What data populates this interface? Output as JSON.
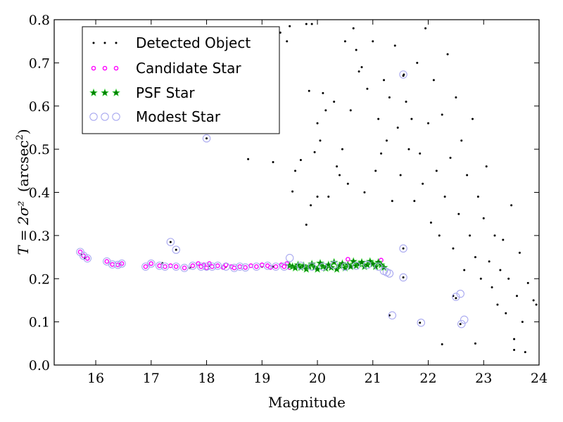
{
  "chart_data": {
    "type": "scatter",
    "xlabel": "Magnitude",
    "ylabel_math": "T = 2σ²",
    "ylabel_unit_prefix": "(arcsec",
    "ylabel_unit_suffix": ")",
    "ylabel_unit_sup": "2",
    "xlim": [
      15.25,
      24
    ],
    "ylim": [
      0.0,
      0.8
    ],
    "xticks": [
      "16",
      "17",
      "18",
      "19",
      "20",
      "21",
      "22",
      "23",
      "24"
    ],
    "xtick_values": [
      16,
      17,
      18,
      19,
      20,
      21,
      22,
      23,
      24
    ],
    "yticks": [
      "0.0",
      "0.1",
      "0.2",
      "0.3",
      "0.4",
      "0.5",
      "0.6",
      "0.7",
      "0.8"
    ],
    "ytick_values": [
      0.0,
      0.1,
      0.2,
      0.3,
      0.4,
      0.5,
      0.6,
      0.7,
      0.8
    ],
    "legend_position": "top-left",
    "series": [
      {
        "name": "Detected Object",
        "marker": "dot",
        "color": "#000000",
        "points": [
          [
            15.72,
            0.262
          ],
          [
            15.75,
            0.255
          ],
          [
            15.8,
            0.247
          ],
          [
            16.2,
            0.24
          ],
          [
            16.3,
            0.233
          ],
          [
            16.45,
            0.235
          ],
          [
            16.9,
            0.228
          ],
          [
            17.2,
            0.236
          ],
          [
            17.35,
            0.285
          ],
          [
            17.45,
            0.267
          ],
          [
            17.7,
            0.225
          ],
          [
            17.95,
            0.232
          ],
          [
            18.0,
            0.525
          ],
          [
            18.05,
            0.23
          ],
          [
            18.35,
            0.228
          ],
          [
            18.7,
            0.227
          ],
          [
            18.75,
            0.477
          ],
          [
            19.0,
            0.228
          ],
          [
            19.2,
            0.228
          ],
          [
            19.2,
            0.47
          ],
          [
            19.3,
            0.62
          ],
          [
            19.33,
            0.77
          ],
          [
            19.45,
            0.75
          ],
          [
            19.5,
            0.785
          ],
          [
            19.55,
            0.402
          ],
          [
            19.6,
            0.45
          ],
          [
            19.7,
            0.475
          ],
          [
            19.8,
            0.79
          ],
          [
            19.85,
            0.635
          ],
          [
            19.8,
            0.325
          ],
          [
            19.88,
            0.37
          ],
          [
            19.9,
            0.79
          ],
          [
            19.95,
            0.493
          ],
          [
            20.0,
            0.56
          ],
          [
            20.0,
            0.39
          ],
          [
            20.05,
            0.52
          ],
          [
            20.1,
            0.63
          ],
          [
            20.15,
            0.59
          ],
          [
            20.2,
            0.39
          ],
          [
            20.3,
            0.61
          ],
          [
            20.35,
            0.46
          ],
          [
            20.4,
            0.44
          ],
          [
            20.45,
            0.5
          ],
          [
            20.5,
            0.75
          ],
          [
            20.55,
            0.42
          ],
          [
            20.6,
            0.59
          ],
          [
            20.65,
            0.78
          ],
          [
            20.7,
            0.73
          ],
          [
            20.75,
            0.68
          ],
          [
            20.8,
            0.69
          ],
          [
            20.85,
            0.4
          ],
          [
            20.9,
            0.64
          ],
          [
            21.0,
            0.75
          ],
          [
            21.05,
            0.45
          ],
          [
            21.1,
            0.57
          ],
          [
            21.15,
            0.49
          ],
          [
            21.2,
            0.66
          ],
          [
            21.25,
            0.52
          ],
          [
            21.3,
            0.62
          ],
          [
            21.35,
            0.38
          ],
          [
            21.4,
            0.74
          ],
          [
            21.45,
            0.55
          ],
          [
            21.5,
            0.44
          ],
          [
            21.55,
            0.67
          ],
          [
            21.6,
            0.61
          ],
          [
            21.65,
            0.5
          ],
          [
            21.7,
            0.57
          ],
          [
            21.75,
            0.38
          ],
          [
            21.8,
            0.7
          ],
          [
            21.85,
            0.49
          ],
          [
            21.9,
            0.42
          ],
          [
            21.95,
            0.78
          ],
          [
            22.0,
            0.56
          ],
          [
            22.05,
            0.33
          ],
          [
            22.1,
            0.66
          ],
          [
            22.15,
            0.45
          ],
          [
            22.2,
            0.3
          ],
          [
            22.25,
            0.58
          ],
          [
            22.3,
            0.39
          ],
          [
            22.35,
            0.72
          ],
          [
            22.4,
            0.48
          ],
          [
            22.45,
            0.27
          ],
          [
            22.5,
            0.62
          ],
          [
            22.55,
            0.35
          ],
          [
            22.6,
            0.52
          ],
          [
            22.65,
            0.22
          ],
          [
            22.7,
            0.44
          ],
          [
            22.75,
            0.3
          ],
          [
            22.8,
            0.57
          ],
          [
            22.85,
            0.25
          ],
          [
            22.9,
            0.39
          ],
          [
            22.95,
            0.2
          ],
          [
            23.0,
            0.34
          ],
          [
            23.05,
            0.46
          ],
          [
            23.1,
            0.24
          ],
          [
            23.15,
            0.18
          ],
          [
            23.2,
            0.3
          ],
          [
            23.25,
            0.14
          ],
          [
            23.3,
            0.22
          ],
          [
            23.35,
            0.29
          ],
          [
            23.4,
            0.12
          ],
          [
            23.45,
            0.2
          ],
          [
            23.5,
            0.37
          ],
          [
            23.55,
            0.06
          ],
          [
            23.6,
            0.16
          ],
          [
            23.65,
            0.26
          ],
          [
            23.7,
            0.1
          ],
          [
            23.75,
            0.03
          ],
          [
            23.8,
            0.19
          ],
          [
            23.9,
            0.15
          ],
          [
            23.95,
            0.14
          ],
          [
            21.3,
            0.115
          ],
          [
            21.85,
            0.098
          ],
          [
            22.5,
            0.155
          ],
          [
            22.58,
            0.095
          ],
          [
            22.25,
            0.048
          ],
          [
            22.85,
            0.05
          ],
          [
            23.55,
            0.035
          ],
          [
            21.56,
            0.673
          ],
          [
            21.55,
            0.203
          ],
          [
            21.55,
            0.27
          ],
          [
            22.45,
            0.16
          ]
        ]
      },
      {
        "name": "Candidate Star",
        "marker": "circle-magenta",
        "color": "#ff00ff",
        "points": [
          [
            15.72,
            0.262
          ],
          [
            15.78,
            0.253
          ],
          [
            15.85,
            0.247
          ],
          [
            16.2,
            0.24
          ],
          [
            16.3,
            0.233
          ],
          [
            16.4,
            0.232
          ],
          [
            16.47,
            0.235
          ],
          [
            16.9,
            0.228
          ],
          [
            17.0,
            0.235
          ],
          [
            17.15,
            0.23
          ],
          [
            17.25,
            0.228
          ],
          [
            17.35,
            0.23
          ],
          [
            17.45,
            0.228
          ],
          [
            17.6,
            0.225
          ],
          [
            17.75,
            0.23
          ],
          [
            17.85,
            0.235
          ],
          [
            17.9,
            0.228
          ],
          [
            17.95,
            0.232
          ],
          [
            18.0,
            0.225
          ],
          [
            18.05,
            0.235
          ],
          [
            18.1,
            0.228
          ],
          [
            18.2,
            0.23
          ],
          [
            18.3,
            0.226
          ],
          [
            18.35,
            0.232
          ],
          [
            18.45,
            0.228
          ],
          [
            18.5,
            0.225
          ],
          [
            18.6,
            0.228
          ],
          [
            18.7,
            0.226
          ],
          [
            18.8,
            0.23
          ],
          [
            18.9,
            0.228
          ],
          [
            19.0,
            0.232
          ],
          [
            19.1,
            0.23
          ],
          [
            19.15,
            0.226
          ],
          [
            19.25,
            0.228
          ],
          [
            19.35,
            0.232
          ],
          [
            19.4,
            0.228
          ],
          [
            19.45,
            0.235
          ],
          [
            19.5,
            0.226
          ],
          [
            20.2,
            0.23
          ],
          [
            20.55,
            0.245
          ],
          [
            21.15,
            0.243
          ]
        ]
      },
      {
        "name": "PSF Star",
        "marker": "star-green",
        "color": "#008000",
        "points": [
          [
            19.5,
            0.23
          ],
          [
            19.55,
            0.228
          ],
          [
            19.6,
            0.225
          ],
          [
            19.65,
            0.232
          ],
          [
            19.7,
            0.226
          ],
          [
            19.75,
            0.23
          ],
          [
            19.8,
            0.222
          ],
          [
            19.85,
            0.228
          ],
          [
            19.9,
            0.234
          ],
          [
            19.95,
            0.226
          ],
          [
            20.0,
            0.222
          ],
          [
            20.05,
            0.236
          ],
          [
            20.1,
            0.228
          ],
          [
            20.15,
            0.224
          ],
          [
            20.2,
            0.232
          ],
          [
            20.25,
            0.226
          ],
          [
            20.3,
            0.238
          ],
          [
            20.35,
            0.222
          ],
          [
            20.4,
            0.23
          ],
          [
            20.45,
            0.235
          ],
          [
            20.5,
            0.225
          ],
          [
            20.55,
            0.232
          ],
          [
            20.6,
            0.228
          ],
          [
            20.65,
            0.24
          ],
          [
            20.7,
            0.23
          ],
          [
            20.75,
            0.234
          ],
          [
            20.8,
            0.238
          ],
          [
            20.85,
            0.228
          ],
          [
            20.9,
            0.232
          ],
          [
            20.95,
            0.24
          ],
          [
            21.0,
            0.234
          ],
          [
            21.05,
            0.228
          ],
          [
            21.1,
            0.238
          ],
          [
            21.15,
            0.232
          ],
          [
            21.2,
            0.226
          ]
        ]
      },
      {
        "name": "Modest Star",
        "marker": "open-circle-lavender",
        "color": "#a8a8f0",
        "points": [
          [
            15.72,
            0.262
          ],
          [
            15.78,
            0.253
          ],
          [
            15.85,
            0.247
          ],
          [
            16.2,
            0.24
          ],
          [
            16.3,
            0.233
          ],
          [
            16.4,
            0.232
          ],
          [
            16.47,
            0.235
          ],
          [
            16.9,
            0.228
          ],
          [
            17.0,
            0.235
          ],
          [
            17.15,
            0.23
          ],
          [
            17.25,
            0.228
          ],
          [
            17.35,
            0.285
          ],
          [
            17.45,
            0.267
          ],
          [
            17.45,
            0.228
          ],
          [
            17.6,
            0.225
          ],
          [
            17.75,
            0.23
          ],
          [
            17.9,
            0.228
          ],
          [
            18.0,
            0.525
          ],
          [
            18.0,
            0.228
          ],
          [
            18.1,
            0.228
          ],
          [
            18.2,
            0.23
          ],
          [
            18.35,
            0.228
          ],
          [
            18.5,
            0.225
          ],
          [
            18.6,
            0.228
          ],
          [
            18.7,
            0.226
          ],
          [
            18.9,
            0.228
          ],
          [
            19.1,
            0.23
          ],
          [
            19.25,
            0.228
          ],
          [
            19.4,
            0.228
          ],
          [
            19.5,
            0.248
          ],
          [
            19.7,
            0.23
          ],
          [
            19.9,
            0.228
          ],
          [
            20.1,
            0.228
          ],
          [
            20.3,
            0.232
          ],
          [
            20.5,
            0.228
          ],
          [
            20.7,
            0.23
          ],
          [
            20.9,
            0.232
          ],
          [
            21.1,
            0.228
          ],
          [
            21.2,
            0.218
          ],
          [
            21.25,
            0.215
          ],
          [
            21.3,
            0.212
          ],
          [
            21.55,
            0.673
          ],
          [
            21.55,
            0.27
          ],
          [
            21.55,
            0.203
          ],
          [
            21.35,
            0.115
          ],
          [
            21.87,
            0.098
          ],
          [
            22.5,
            0.158
          ],
          [
            22.58,
            0.165
          ],
          [
            22.6,
            0.095
          ],
          [
            22.65,
            0.105
          ]
        ]
      }
    ]
  }
}
